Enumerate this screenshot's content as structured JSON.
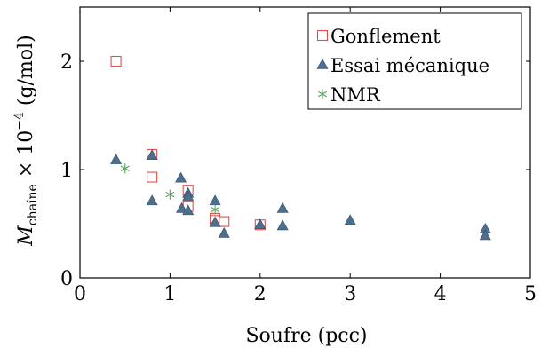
{
  "chart_data": {
    "type": "scatter",
    "title": "",
    "xlabel": "Soufre (pcc)",
    "ylabel_main": "M",
    "ylabel_sub": "chaîne",
    "ylabel_rest": " × 10",
    "ylabel_exp": "−4",
    "ylabel_unit": " (g/mol)",
    "xlim": [
      0,
      5
    ],
    "ylim": [
      0,
      2.5
    ],
    "xticks": [
      "0",
      "1",
      "2",
      "3",
      "4",
      "5"
    ],
    "yticks": [
      "0",
      "1",
      "2"
    ],
    "grid": false,
    "legend_position": "top-right",
    "series": [
      {
        "name": "Gonflement",
        "marker": "square-open",
        "color": "#e05050",
        "points": [
          [
            0.4,
            2.0
          ],
          [
            0.8,
            1.14
          ],
          [
            0.8,
            0.93
          ],
          [
            1.2,
            0.81
          ],
          [
            1.2,
            0.66
          ],
          [
            1.5,
            0.55
          ],
          [
            1.5,
            0.53
          ],
          [
            1.6,
            0.52
          ],
          [
            2.0,
            0.49
          ]
        ]
      },
      {
        "name": "Essai mécanique",
        "marker": "triangle-filled",
        "color": "#4d6f8e",
        "points": [
          [
            0.4,
            1.09
          ],
          [
            0.8,
            1.13
          ],
          [
            0.8,
            0.71
          ],
          [
            1.12,
            0.92
          ],
          [
            1.13,
            0.64
          ],
          [
            1.2,
            0.78
          ],
          [
            1.2,
            0.75
          ],
          [
            1.2,
            0.62
          ],
          [
            1.5,
            0.71
          ],
          [
            1.5,
            0.51
          ],
          [
            1.6,
            0.41
          ],
          [
            2.0,
            0.49
          ],
          [
            2.25,
            0.64
          ],
          [
            2.25,
            0.48
          ],
          [
            3.0,
            0.53
          ],
          [
            4.5,
            0.45
          ],
          [
            4.5,
            0.39
          ]
        ]
      },
      {
        "name": "NMR",
        "marker": "asterisk",
        "color": "#5aa05a",
        "points": [
          [
            0.5,
            1.01
          ],
          [
            1.0,
            0.77
          ],
          [
            1.5,
            0.63
          ]
        ]
      }
    ]
  }
}
